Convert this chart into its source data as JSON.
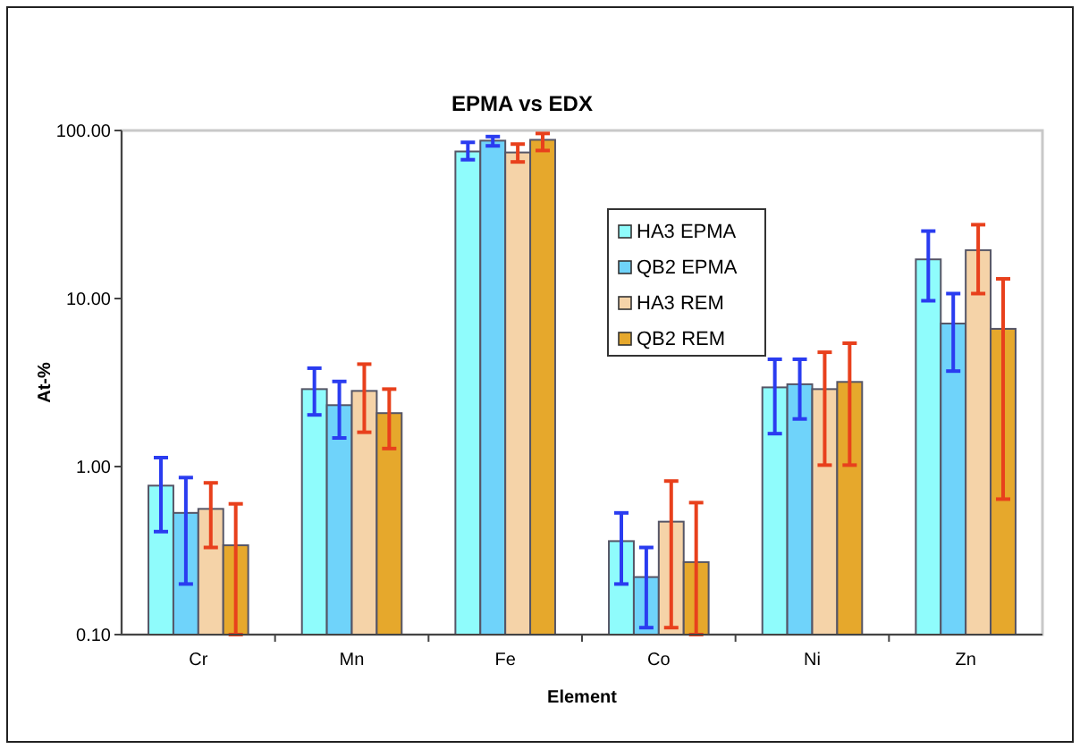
{
  "chart_data": {
    "type": "bar",
    "title": "EPMA vs EDX",
    "xlabel": "Element",
    "ylabel": "At-%",
    "categories": [
      "Cr",
      "Mn",
      "Fe",
      "Co",
      "Ni",
      "Zn"
    ],
    "series": [
      {
        "name": "HA3 EPMA",
        "color": "#8ffcfc",
        "values": [
          0.77,
          2.89,
          75,
          0.36,
          2.96,
          17.1
        ],
        "errors": [
          [
            0.41,
            1.13
          ],
          [
            2.03,
            3.85
          ],
          [
            67,
            85
          ],
          [
            0.2,
            0.53
          ],
          [
            1.57,
            4.35
          ],
          [
            9.7,
            25.2
          ]
        ]
      },
      {
        "name": "QB2 EPMA",
        "color": "#6fd3fa",
        "values": [
          0.53,
          2.32,
          87,
          0.22,
          3.09,
          7.1
        ],
        "errors": [
          [
            0.2,
            0.86
          ],
          [
            1.48,
            3.21
          ],
          [
            81,
            92
          ],
          [
            0.11,
            0.33
          ],
          [
            1.92,
            4.35
          ],
          [
            3.7,
            10.7
          ]
        ]
      },
      {
        "name": "HA3 REM",
        "color": "#f5d3a8",
        "values": [
          0.56,
          2.82,
          74,
          0.47,
          2.89,
          19.4
        ],
        "errors": [
          [
            0.33,
            0.8
          ],
          [
            1.6,
            4.07
          ],
          [
            65,
            83
          ],
          [
            0.11,
            0.82
          ],
          [
            1.02,
            4.79
          ],
          [
            10.7,
            27.5
          ]
        ]
      },
      {
        "name": "QB2 REM",
        "color": "#e6a82c",
        "values": [
          0.34,
          2.08,
          88,
          0.27,
          3.19,
          6.6
        ],
        "errors": [
          [
            0.1,
            0.6
          ],
          [
            1.28,
            2.89
          ],
          [
            76,
            96
          ],
          [
            0.1,
            0.61
          ],
          [
            1.02,
            5.42
          ],
          [
            0.64,
            13.1
          ]
        ]
      }
    ],
    "log": true,
    "ylim": [
      0.1,
      100
    ],
    "yticks": [
      {
        "value": 0.1,
        "label": "0.10"
      },
      {
        "value": 1,
        "label": "1.00"
      },
      {
        "value": 10,
        "label": "10.00"
      },
      {
        "value": 100,
        "label": "100.00"
      }
    ],
    "legend": "top",
    "grid": false
  }
}
